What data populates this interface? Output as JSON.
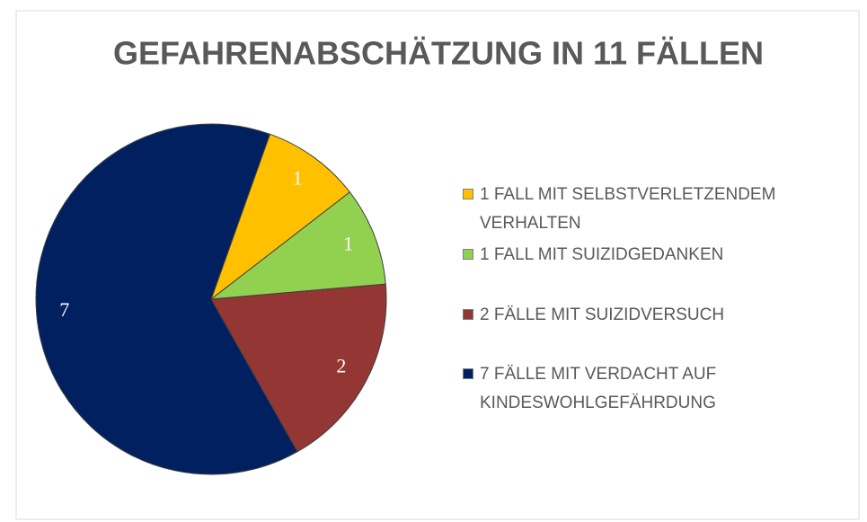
{
  "chart_data": {
    "type": "pie",
    "title": "GEFAHRENABSCHÄTZUNG IN 11 FÄLLEN",
    "categories": [
      "1 FALL MIT SELBSTVERLETZENDEM VERHALTEN",
      "1 FALL MIT SUIZIDGEDANKEN",
      "2 FÄLLE MIT SUIZIDVERSUCH",
      "7 FÄLLE MIT VERDACHT AUF KINDESWOHLGEFÄHRDUNG"
    ],
    "values": [
      1,
      1,
      2,
      7
    ],
    "colors": [
      "#ffc000",
      "#92d050",
      "#943634",
      "#002060"
    ]
  }
}
